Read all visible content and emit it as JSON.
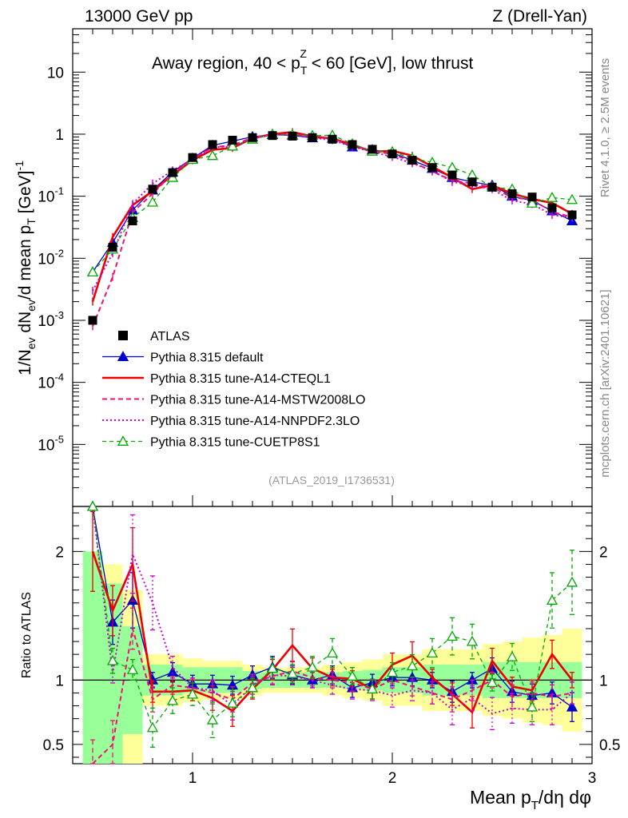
{
  "header": {
    "energy": "13000 GeV pp",
    "process": "Z (Drell-Yan)",
    "side_rivet": "Rivet 4.1.0, ≥ 2.5M events",
    "side_source": "mcplots.cern.ch [arXiv:2401.10621]",
    "analysis_id": "(ATLAS_2019_I1736531)"
  },
  "chart_data": {
    "type": "line",
    "title": "Away region, 40 < p_T^Z < 60 [GeV], low thrust",
    "title_parts": {
      "a": "Away region, 40 < p",
      "sub": "T",
      "sup": "Z",
      "b": " < 60 [GeV], low thrust"
    },
    "ylabel": "1/N_ev dN_ev/d mean p_T [GeV]^-1",
    "ylabel_parts": {
      "a": "1/N",
      "s1": "ev",
      "b": " dN",
      "s2": "ev",
      "c": "/d mean p",
      "s3": "T",
      "d": " [GeV]",
      "e": "-1"
    },
    "xlabel": "Mean p_T/dη dφ",
    "xlabel_parts": {
      "a": "Mean p",
      "sub": "T",
      "b": "/dη dφ"
    },
    "ratio_ylabel": "Ratio to ATLAS",
    "xlim": [
      0.4,
      3.0
    ],
    "ylim": [
      1e-06,
      50
    ],
    "ratio_ylim": [
      0.35,
      2.35
    ],
    "x_ticks": [
      "1",
      "2",
      "3"
    ],
    "y_ticks": [
      "10",
      "1",
      "10^-1",
      "10^-2",
      "10^-3",
      "10^-4",
      "10^-5"
    ],
    "ratio_ticks": [
      "0.5",
      "1",
      "2"
    ],
    "x": [
      0.5,
      0.6,
      0.7,
      0.8,
      0.9,
      1.0,
      1.1,
      1.2,
      1.3,
      1.4,
      1.5,
      1.6,
      1.7,
      1.8,
      1.9,
      2.0,
      2.1,
      2.2,
      2.3,
      2.4,
      2.5,
      2.6,
      2.7,
      2.8,
      2.9
    ],
    "series": [
      {
        "name": "ATLAS",
        "color": "#000000",
        "style": "data",
        "values": [
          0.001,
          0.015,
          0.04,
          0.13,
          0.24,
          0.42,
          0.68,
          0.8,
          0.88,
          0.95,
          0.93,
          0.88,
          0.83,
          0.68,
          0.57,
          0.48,
          0.38,
          0.29,
          0.22,
          0.17,
          0.14,
          0.11,
          0.097,
          0.065,
          0.05
        ]
      },
      {
        "name": "Pythia 8.315 default",
        "color": "#0000cc",
        "style": "solid-triangle",
        "values": [
          0.006,
          0.018,
          0.06,
          0.125,
          0.245,
          0.41,
          0.66,
          0.77,
          0.91,
          0.98,
          0.96,
          0.87,
          0.86,
          0.62,
          0.56,
          0.5,
          0.38,
          0.28,
          0.2,
          0.17,
          0.15,
          0.1,
          0.085,
          0.058,
          0.04
        ],
        "ratio": [
          6.0,
          1.45,
          1.62,
          1.0,
          1.06,
          0.97,
          0.97,
          0.96,
          1.04,
          1.1,
          1.04,
          1.0,
          1.04,
          0.94,
          0.98,
          1.02,
          1.02,
          1.0,
          0.91,
          1.0,
          1.09,
          0.91,
          0.88,
          0.9,
          0.79
        ]
      },
      {
        "name": "Pythia 8.315 tune-A14-CTEQL1",
        "color": "#ee0000",
        "style": "thick-solid",
        "values": [
          0.002,
          0.022,
          0.072,
          0.12,
          0.22,
          0.38,
          0.56,
          0.6,
          0.86,
          1.0,
          1.08,
          0.92,
          0.85,
          0.68,
          0.52,
          0.54,
          0.45,
          0.3,
          0.2,
          0.13,
          0.15,
          0.11,
          0.09,
          0.078,
          0.052
        ],
        "ratio": [
          2.0,
          1.54,
          1.9,
          0.91,
          0.91,
          0.92,
          0.86,
          0.76,
          0.93,
          1.08,
          1.27,
          1.09,
          1.02,
          1.01,
          0.93,
          1.12,
          1.19,
          1.02,
          0.89,
          0.75,
          1.15,
          0.95,
          0.92,
          1.2,
          1.0
        ]
      },
      {
        "name": "Pythia 8.315 tune-A14-MSTW2008LO",
        "color": "#ee1177",
        "style": "dashed",
        "values": [
          0.0008,
          0.005,
          0.055,
          0.11,
          0.23,
          0.4,
          0.62,
          0.66,
          0.88,
          0.98,
          1.0,
          0.9,
          0.84,
          0.66,
          0.53,
          0.48,
          0.36,
          0.25,
          0.18,
          0.16,
          0.14,
          0.095,
          0.088,
          0.056,
          0.046
        ],
        "ratio": [
          0.3,
          0.5,
          1.4,
          0.85,
          0.96,
          0.94,
          0.9,
          0.85,
          0.98,
          1.03,
          1.07,
          1.02,
          1.0,
          0.98,
          0.93,
          1.0,
          0.95,
          0.9,
          0.85,
          0.92,
          1.0,
          0.87,
          0.9,
          0.87,
          0.9
        ]
      },
      {
        "name": "Pythia 8.315 tune-A14-NNPDF2.3LO",
        "color": "#cc00cc",
        "style": "dotted",
        "values": [
          0.003,
          0.012,
          0.075,
          0.16,
          0.26,
          0.39,
          0.62,
          0.63,
          0.84,
          0.99,
          0.96,
          0.88,
          0.8,
          0.63,
          0.52,
          0.43,
          0.34,
          0.26,
          0.17,
          0.15,
          0.13,
          0.085,
          0.075,
          0.05,
          0.045
        ],
        "ratio": [
          3.0,
          1.05,
          1.98,
          1.6,
          1.1,
          0.94,
          0.92,
          0.8,
          0.96,
          1.04,
          1.03,
          1.0,
          0.96,
          0.93,
          0.92,
          0.88,
          0.92,
          0.9,
          0.77,
          0.86,
          0.74,
          0.78,
          0.77,
          0.77,
          0.9
        ]
      },
      {
        "name": "Pythia 8.315 tune-CUETP8S1",
        "color": "#00aa00",
        "style": "dashed-open-triangle",
        "values": [
          0.006,
          0.014,
          0.045,
          0.08,
          0.2,
          0.39,
          0.45,
          0.64,
          0.83,
          1.0,
          0.98,
          0.95,
          0.96,
          0.7,
          0.53,
          0.52,
          0.41,
          0.35,
          0.29,
          0.22,
          0.14,
          0.13,
          0.077,
          0.095,
          0.088
        ],
        "ratio": [
          6.0,
          1.15,
          1.08,
          0.63,
          0.84,
          0.89,
          0.69,
          0.82,
          0.94,
          1.09,
          1.05,
          1.1,
          1.21,
          1.03,
          0.93,
          1.06,
          1.11,
          1.21,
          1.34,
          1.3,
          0.98,
          1.18,
          0.79,
          1.62,
          1.76
        ]
      }
    ],
    "ratio_band_inner": [
      1.0,
      0.75,
      0.42,
      0.12,
      0.12,
      0.1,
      0.1,
      0.1,
      0.07,
      0.06,
      0.06,
      0.06,
      0.06,
      0.07,
      0.08,
      0.1,
      0.1,
      0.12,
      0.12,
      0.12,
      0.14,
      0.14,
      0.14,
      0.14,
      0.14
    ],
    "ratio_band_outer": [
      1.0,
      0.9,
      0.7,
      0.2,
      0.2,
      0.17,
      0.15,
      0.15,
      0.12,
      0.1,
      0.1,
      0.1,
      0.12,
      0.14,
      0.16,
      0.2,
      0.2,
      0.24,
      0.24,
      0.24,
      0.28,
      0.3,
      0.33,
      0.35,
      0.4
    ],
    "legend_position": "center-left"
  }
}
